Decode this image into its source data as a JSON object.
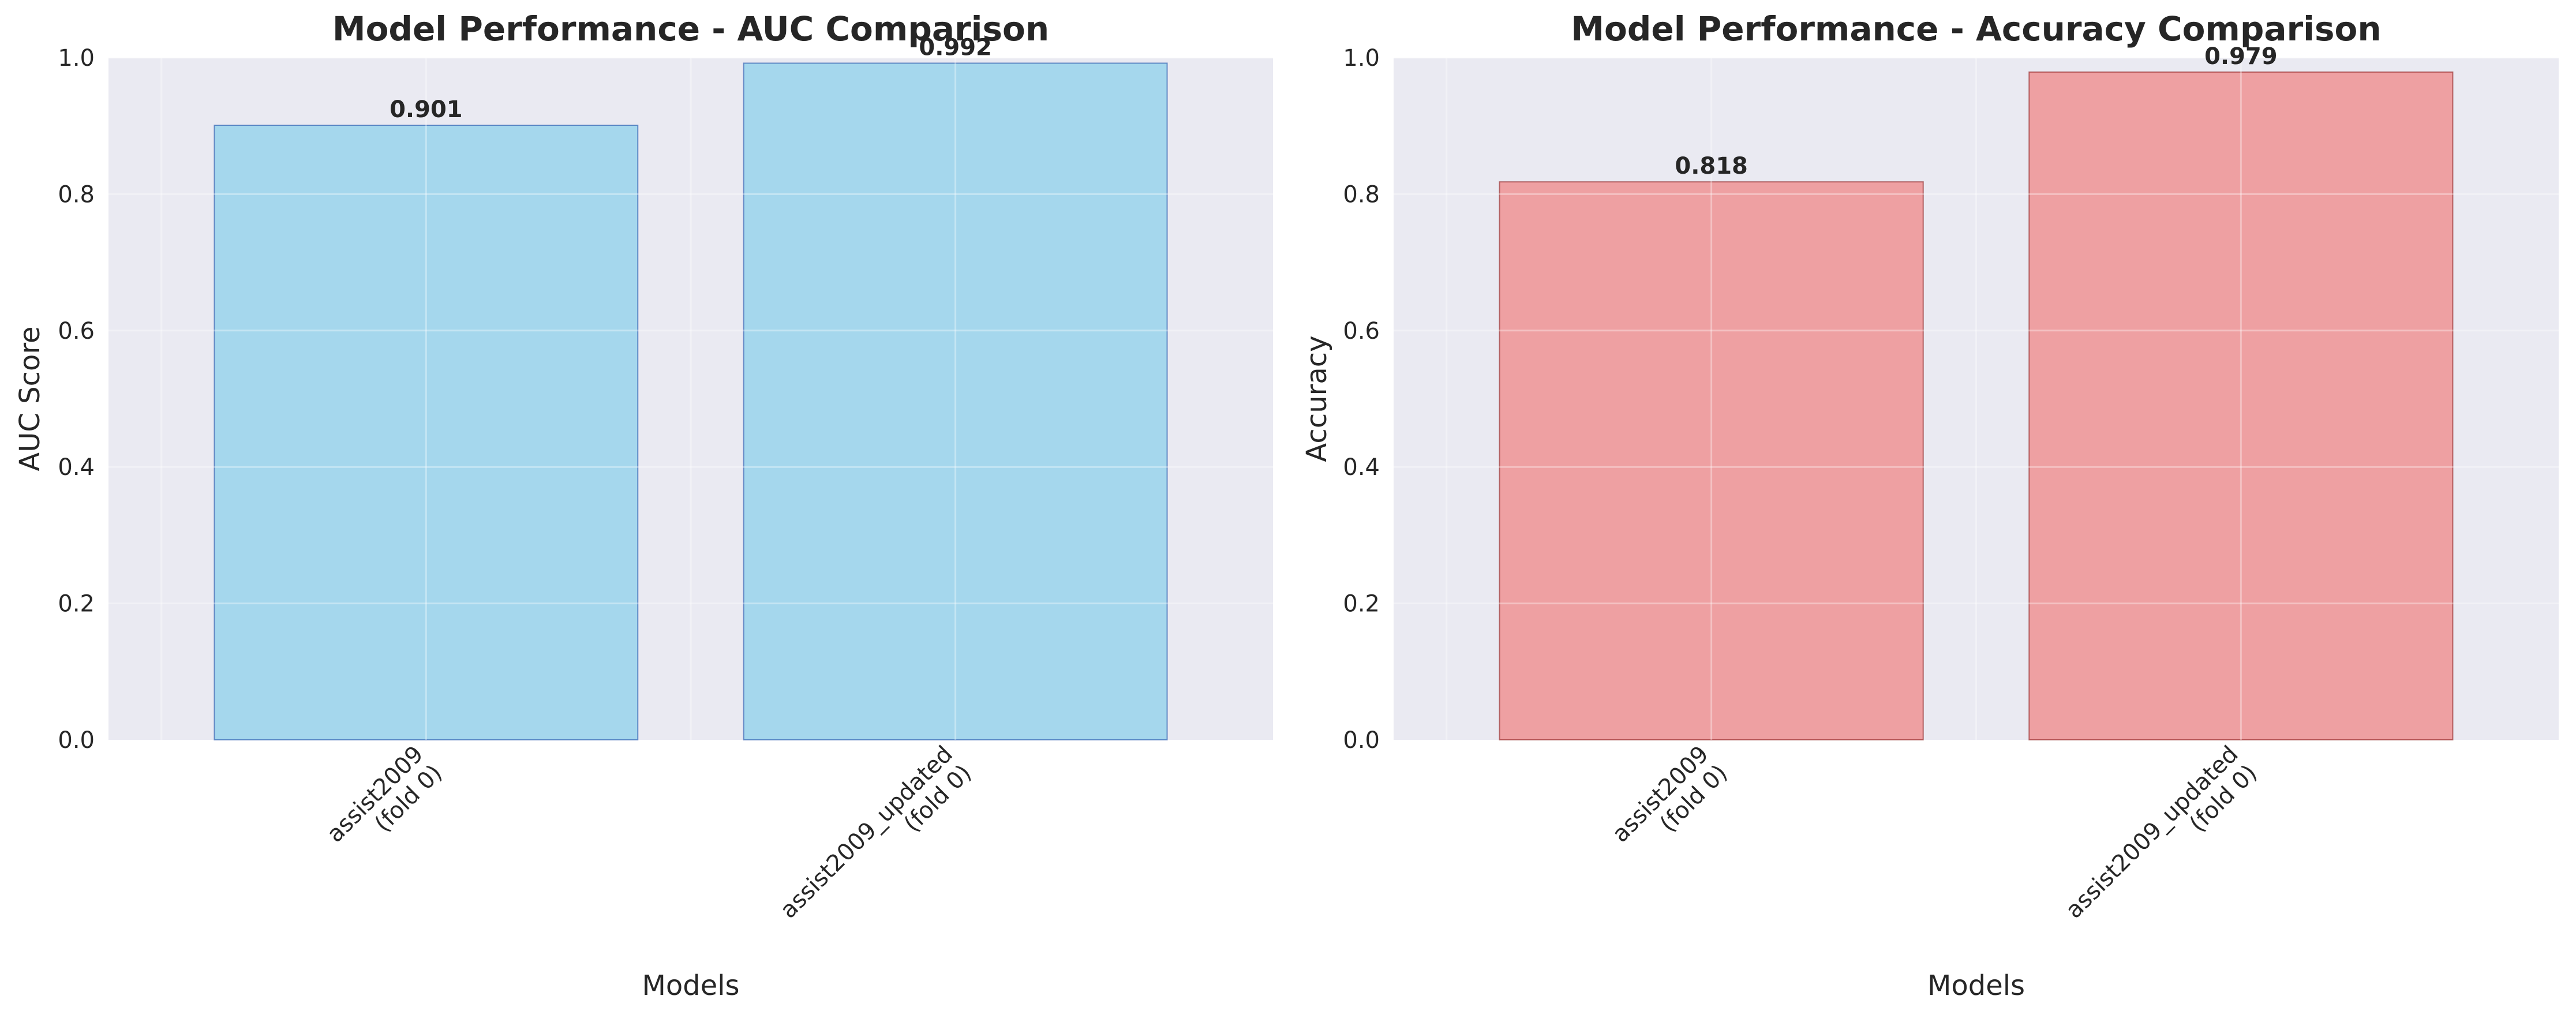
{
  "chart_data": [
    {
      "type": "bar",
      "title": "Model Performance - AUC Comparison",
      "xlabel": "Models",
      "ylabel": "AUC Score",
      "ylim": [
        0,
        1.0
      ],
      "yticks": [
        0.0,
        0.2,
        0.4,
        0.6,
        0.8,
        1.0
      ],
      "ytick_labels": [
        "0.0",
        "0.2",
        "0.4",
        "0.6",
        "0.8",
        "1.0"
      ],
      "categories": [
        [
          "assist2009",
          "(fold 0)"
        ],
        [
          "assist2009_updated",
          "(fold 0)"
        ]
      ],
      "values": [
        0.901,
        0.992
      ],
      "value_labels": [
        "0.901",
        "0.992"
      ],
      "bar_color": "#87CEEB",
      "bar_edge_color": "#1f4fa8",
      "grid": true,
      "background": "#eaeaf2"
    },
    {
      "type": "bar",
      "title": "Model Performance - Accuracy Comparison",
      "xlabel": "Models",
      "ylabel": "Accuracy",
      "ylim": [
        0,
        1.0
      ],
      "yticks": [
        0.0,
        0.2,
        0.4,
        0.6,
        0.8,
        1.0
      ],
      "ytick_labels": [
        "0.0",
        "0.2",
        "0.4",
        "0.6",
        "0.8",
        "1.0"
      ],
      "categories": [
        [
          "assist2009",
          "(fold 0)"
        ],
        [
          "assist2009_updated",
          "(fold 0)"
        ]
      ],
      "values": [
        0.818,
        0.979
      ],
      "value_labels": [
        "0.818",
        "0.979"
      ],
      "bar_color": "#F08080",
      "bar_edge_color": "#8b1a1a",
      "grid": true,
      "background": "#eaeaf2"
    }
  ]
}
